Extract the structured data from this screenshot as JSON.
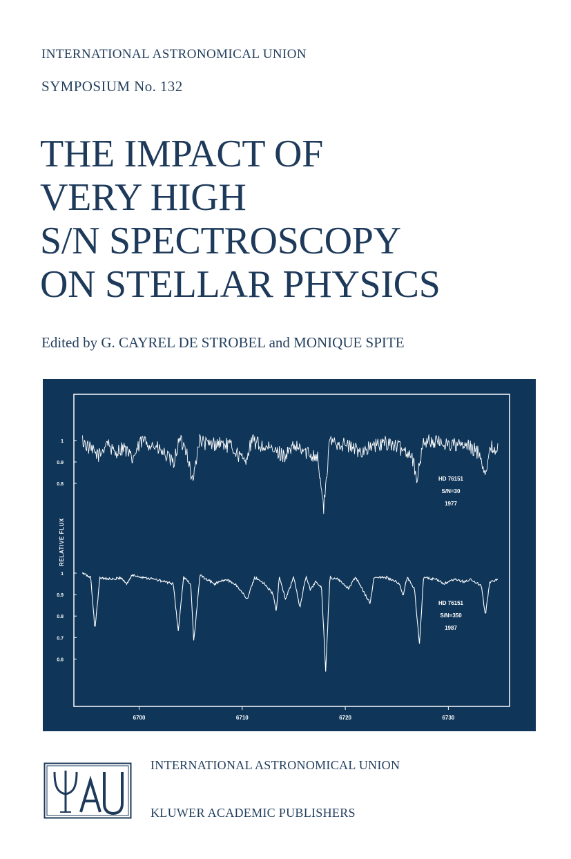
{
  "header": {
    "series": "INTERNATIONAL ASTRONOMICAL UNION",
    "symposium": "SYMPOSIUM No. 132"
  },
  "title_lines": [
    "THE IMPACT OF",
    "VERY HIGH",
    "S/N SPECTROSCOPY",
    "ON STELLAR PHYSICS"
  ],
  "editors": "Edited by G. CAYREL DE STROBEL and MONIQUE SPITE",
  "colors": {
    "navy": "#1e3a5a",
    "plate": "#0f3558",
    "spectrum": "#ffffff"
  },
  "chart_data": {
    "type": "line",
    "xlabel": "",
    "ylabel": "RELATIVE FLUX",
    "xlim": [
      6694,
      6735
    ],
    "xticks": [
      "6700",
      "6710",
      "6720",
      "6730"
    ],
    "series": [
      {
        "name": "HD 76151 S/N=30 1977",
        "label_lines": [
          "HD 76151",
          "S/N=30",
          "1977"
        ],
        "yticks": [
          "1",
          "0.9",
          "0.8"
        ],
        "noise": 0.035,
        "points": [
          [
            6694.5,
            1.0
          ],
          [
            6695.4,
            0.95
          ],
          [
            6696.2,
            0.93
          ],
          [
            6696.9,
            1.0
          ],
          [
            6697.5,
            0.94
          ],
          [
            6698.5,
            0.97
          ],
          [
            6699.3,
            0.91
          ],
          [
            6700.3,
            1.0
          ],
          [
            6701.3,
            0.98
          ],
          [
            6702.6,
            0.93
          ],
          [
            6703.3,
            0.89
          ],
          [
            6703.9,
            1.0
          ],
          [
            6704.6,
            0.96
          ],
          [
            6705.2,
            0.8
          ],
          [
            6705.8,
            1.0
          ],
          [
            6706.7,
            0.98
          ],
          [
            6707.8,
            0.99
          ],
          [
            6709.0,
            0.97
          ],
          [
            6710.2,
            0.9
          ],
          [
            6711.0,
            1.0
          ],
          [
            6712.0,
            0.97
          ],
          [
            6713.2,
            0.95
          ],
          [
            6714.1,
            0.93
          ],
          [
            6715.1,
            0.97
          ],
          [
            6716.4,
            0.94
          ],
          [
            6717.3,
            0.93
          ],
          [
            6717.9,
            0.68
          ],
          [
            6718.5,
            1.0
          ],
          [
            6720.0,
            0.98
          ],
          [
            6721.4,
            0.95
          ],
          [
            6722.6,
            0.97
          ],
          [
            6724.1,
            0.99
          ],
          [
            6725.5,
            0.96
          ],
          [
            6726.4,
            0.94
          ],
          [
            6727.0,
            0.82
          ],
          [
            6727.6,
            1.0
          ],
          [
            6729.1,
            0.99
          ],
          [
            6730.6,
            0.98
          ],
          [
            6732.0,
            0.97
          ],
          [
            6733.1,
            0.94
          ],
          [
            6733.5,
            0.85
          ],
          [
            6734.2,
            0.97
          ],
          [
            6734.8,
            0.96
          ]
        ]
      },
      {
        "name": "HD 76151 S/N=350 1987",
        "label_lines": [
          "HD 76151",
          "S/N=350",
          "1987"
        ],
        "yticks": [
          "1",
          "0.9",
          "0.8",
          "0.7",
          "0.6"
        ],
        "noise": 0.006,
        "points": [
          [
            6694.5,
            1.0
          ],
          [
            6695.3,
            0.98
          ],
          [
            6695.7,
            0.74
          ],
          [
            6696.2,
            0.98
          ],
          [
            6697.5,
            0.97
          ],
          [
            6698.2,
            0.98
          ],
          [
            6698.8,
            0.95
          ],
          [
            6699.3,
            0.99
          ],
          [
            6700.5,
            0.98
          ],
          [
            6701.6,
            0.97
          ],
          [
            6703.3,
            0.95
          ],
          [
            6703.8,
            0.73
          ],
          [
            6704.3,
            0.98
          ],
          [
            6705.0,
            0.95
          ],
          [
            6705.3,
            0.68
          ],
          [
            6705.9,
            0.99
          ],
          [
            6707.3,
            0.95
          ],
          [
            6708.4,
            0.97
          ],
          [
            6709.3,
            0.95
          ],
          [
            6710.5,
            0.88
          ],
          [
            6711.2,
            0.98
          ],
          [
            6712.2,
            0.95
          ],
          [
            6713.0,
            0.9
          ],
          [
            6713.3,
            0.82
          ],
          [
            6713.6,
            0.98
          ],
          [
            6714.2,
            0.88
          ],
          [
            6715.0,
            0.98
          ],
          [
            6715.6,
            0.84
          ],
          [
            6716.2,
            0.99
          ],
          [
            6716.6,
            0.92
          ],
          [
            6717.1,
            0.96
          ],
          [
            6717.7,
            0.93
          ],
          [
            6718.1,
            0.54
          ],
          [
            6718.5,
            0.98
          ],
          [
            6719.3,
            0.97
          ],
          [
            6720.3,
            0.93
          ],
          [
            6721.0,
            0.98
          ],
          [
            6722.4,
            0.86
          ],
          [
            6722.8,
            0.98
          ],
          [
            6724.0,
            0.98
          ],
          [
            6725.3,
            0.95
          ],
          [
            6725.6,
            0.89
          ],
          [
            6726.0,
            0.98
          ],
          [
            6726.7,
            0.93
          ],
          [
            6727.2,
            0.67
          ],
          [
            6727.6,
            0.98
          ],
          [
            6728.8,
            0.97
          ],
          [
            6729.6,
            0.95
          ],
          [
            6730.6,
            0.97
          ],
          [
            6731.5,
            0.96
          ],
          [
            6732.2,
            0.97
          ],
          [
            6733.2,
            0.94
          ],
          [
            6733.6,
            0.8
          ],
          [
            6734.0,
            0.96
          ],
          [
            6734.8,
            0.97
          ]
        ]
      }
    ]
  },
  "footer": {
    "logo": "IAU emblem",
    "line1": "INTERNATIONAL ASTRONOMICAL UNION",
    "line2": "KLUWER ACADEMIC PUBLISHERS"
  }
}
